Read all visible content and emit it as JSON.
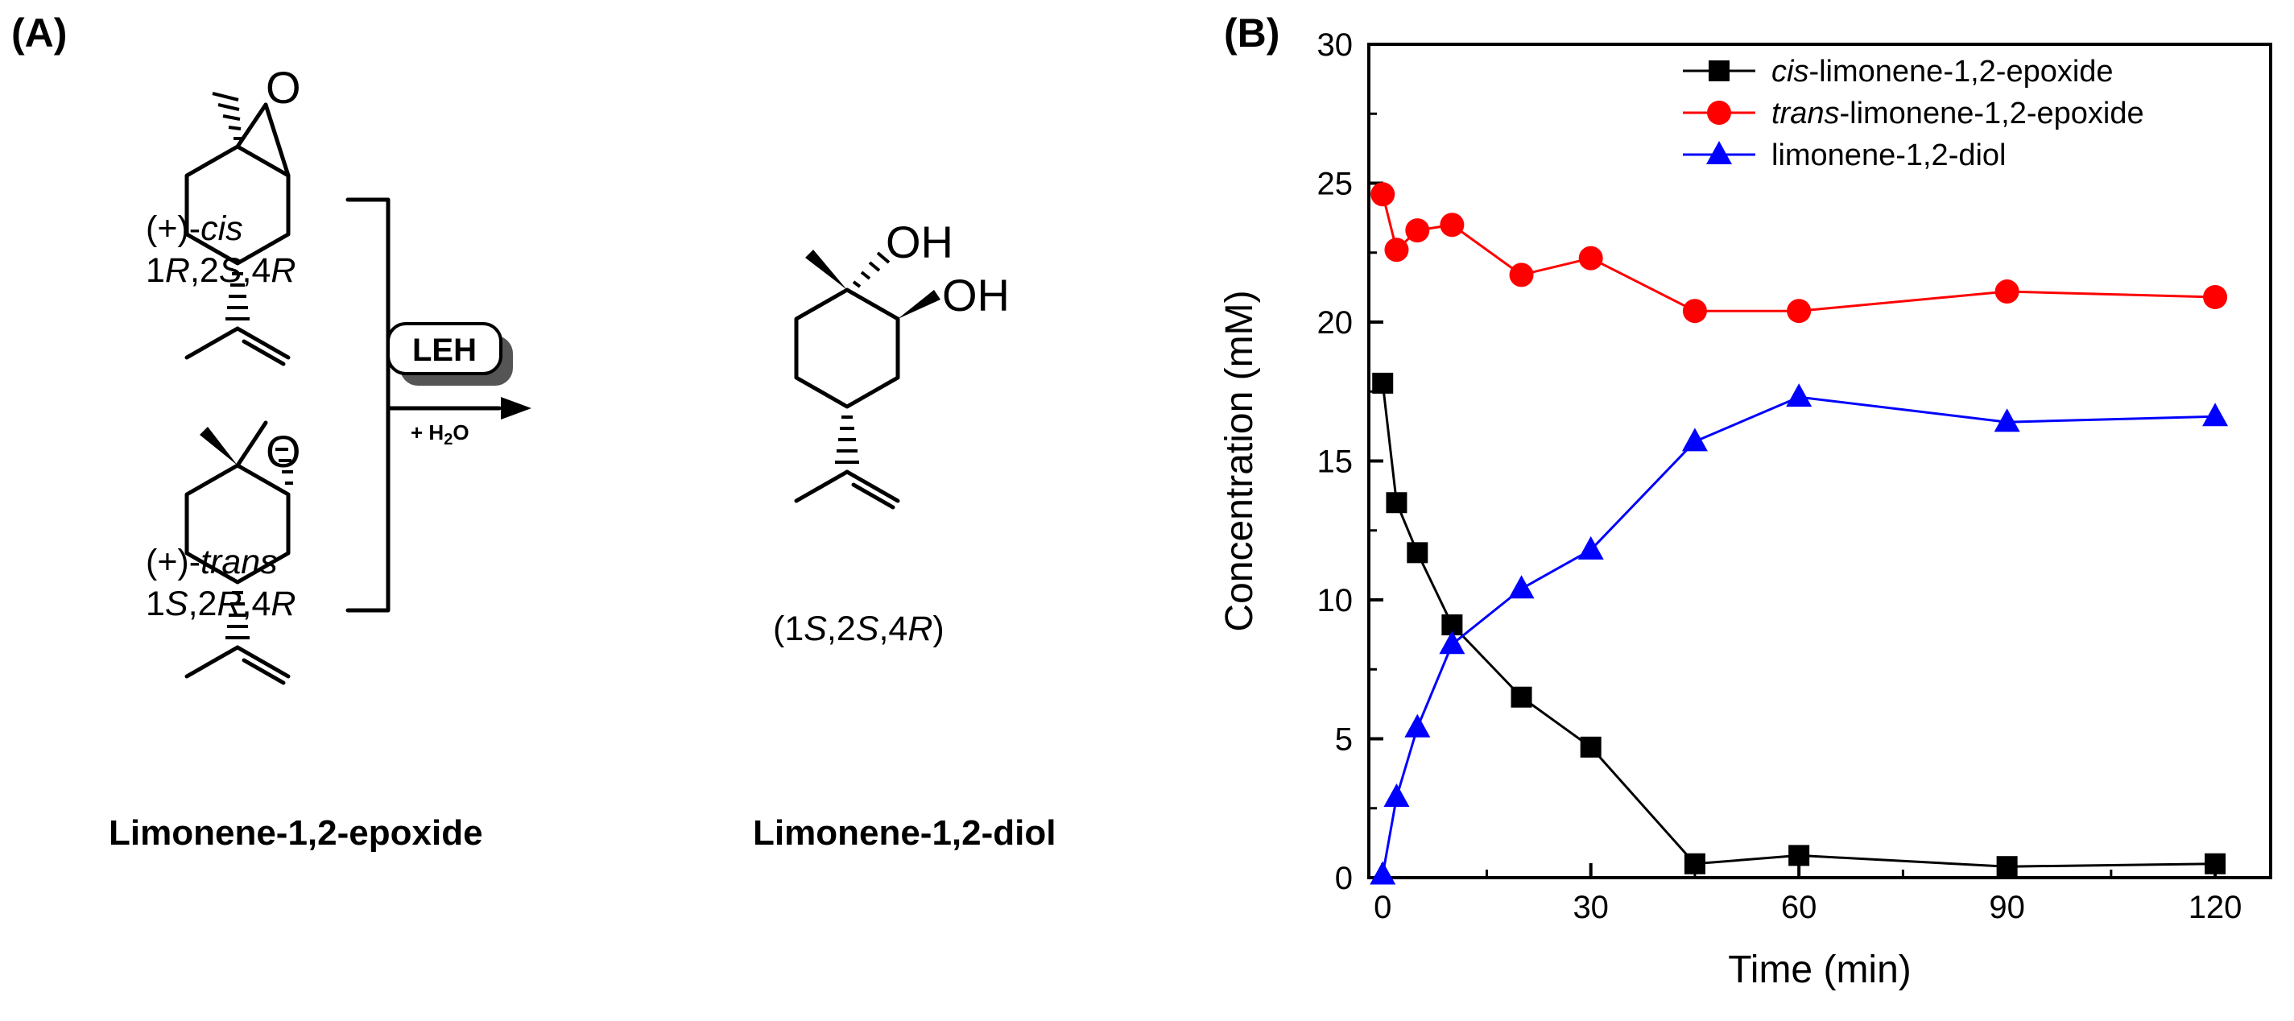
{
  "panel_a": {
    "label": "(A)",
    "cis": {
      "prefix": "(+)-",
      "italic": "cis",
      "config": [
        "1",
        "R",
        ",2",
        "S",
        ",4",
        "R"
      ]
    },
    "trans": {
      "prefix": "(+)-",
      "italic": "trans",
      "config": [
        "1",
        "S",
        ",2",
        "R",
        ",4",
        "R"
      ]
    },
    "product_config": [
      "(1",
      "S",
      ",2",
      "S",
      ",4",
      "R",
      ")"
    ],
    "enzyme": "LEH",
    "reagent": {
      "pre": "+ H",
      "sub": "2",
      "post": "O"
    },
    "atom_O": "O",
    "atom_OH": "OH",
    "caption_epoxide": "Limonene-1,2-epoxide",
    "caption_diol": "Limonene-1,2-diol"
  },
  "panel_b": {
    "label": "(B)"
  },
  "chart_data": {
    "type": "line",
    "xlabel": "Time (min)",
    "ylabel": "Concentration (mM)",
    "xlim": [
      -2,
      128
    ],
    "ylim": [
      0,
      30
    ],
    "xticks": [
      0,
      30,
      60,
      90,
      120
    ],
    "yticks": [
      0,
      5,
      10,
      15,
      20,
      25,
      30
    ],
    "grid": false,
    "legend_position": "top-right",
    "series": [
      {
        "name_italic": "cis",
        "name_rest": "-limonene-1,2-epoxide",
        "marker": "square",
        "color": "#000000",
        "x": [
          0,
          2,
          5,
          10,
          20,
          30,
          45,
          60,
          90,
          120
        ],
        "y": [
          17.8,
          13.5,
          11.7,
          9.1,
          6.5,
          4.7,
          0.5,
          0.8,
          0.4,
          0.5
        ]
      },
      {
        "name_italic": "trans",
        "name_rest": "-limonene-1,2-epoxide",
        "marker": "circle",
        "color": "#ff0000",
        "x": [
          0,
          2,
          5,
          10,
          20,
          30,
          45,
          60,
          90,
          120
        ],
        "y": [
          24.6,
          22.6,
          23.3,
          23.5,
          21.7,
          22.3,
          20.4,
          20.4,
          21.1,
          20.9
        ]
      },
      {
        "name_italic": "",
        "name_rest": "limonene-1,2-diol",
        "marker": "triangle",
        "color": "#0000ff",
        "x": [
          0,
          2,
          5,
          10,
          20,
          30,
          45,
          60,
          90,
          120
        ],
        "y": [
          0.1,
          2.9,
          5.4,
          8.4,
          10.4,
          11.8,
          15.7,
          17.3,
          16.4,
          16.6
        ]
      }
    ]
  }
}
